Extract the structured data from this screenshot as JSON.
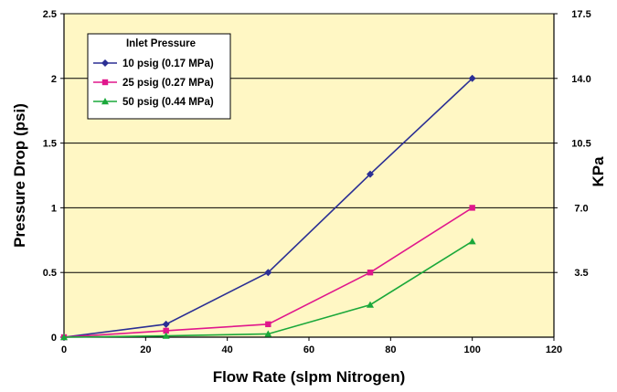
{
  "chart_data": {
    "type": "line",
    "title": "",
    "xlabel": "Flow Rate (slpm Nitrogen)",
    "ylabel": "Pressure Drop (psi)",
    "y2label": "KPa",
    "xlim": [
      0,
      120
    ],
    "ylim": [
      0,
      2.5
    ],
    "x_ticks": [
      "0",
      "20",
      "40",
      "60",
      "80",
      "100",
      "120"
    ],
    "y_ticks": [
      "0",
      "0.5",
      "1",
      "1.5",
      "2",
      "2.5"
    ],
    "y2_ticks": [
      {
        "label": "3.5",
        "at_psi": 0.5
      },
      {
        "label": "7.0",
        "at_psi": 1.0
      },
      {
        "label": "10.5",
        "at_psi": 1.5
      },
      {
        "label": "14.0",
        "at_psi": 2.0
      },
      {
        "label": "17.5",
        "at_psi": 2.5
      }
    ],
    "grid": "horizontal",
    "legend_title": "Inlet Pressure",
    "legend_position": "top-left",
    "plot_background": "#fff7c4",
    "series": [
      {
        "name": "10 psig (0.17 MPa)",
        "color": "#2b2f94",
        "marker": "diamond",
        "x": [
          0,
          25,
          50,
          75,
          100
        ],
        "y": [
          0,
          0.1,
          0.5,
          1.26,
          2.0
        ]
      },
      {
        "name": "25 psig (0.27 MPa)",
        "color": "#e0178c",
        "marker": "square",
        "x": [
          0,
          25,
          50,
          75,
          100
        ],
        "y": [
          0,
          0.05,
          0.1,
          0.5,
          1.0
        ]
      },
      {
        "name": "50 psig (0.44 MPa)",
        "color": "#1aa83a",
        "marker": "triangle",
        "x": [
          0,
          25,
          50,
          75,
          100
        ],
        "y": [
          0,
          0.01,
          0.025,
          0.25,
          0.74
        ]
      }
    ]
  }
}
